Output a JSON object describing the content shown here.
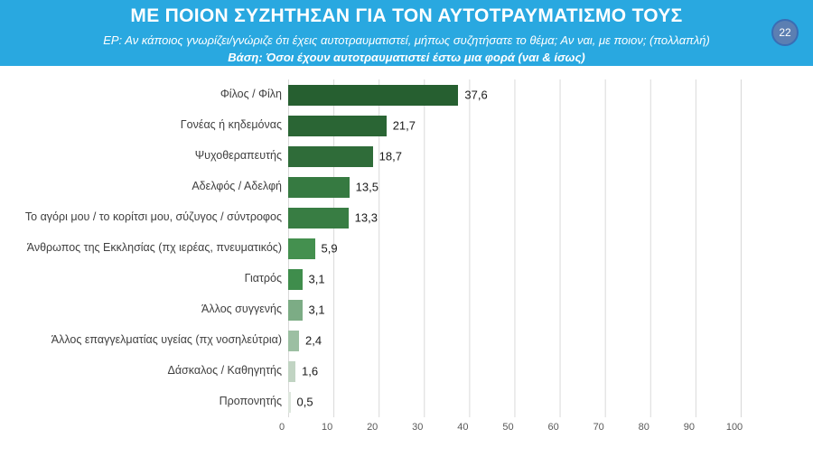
{
  "slide": {
    "page_number": "22",
    "header": {
      "title": "ΜΕ ΠΟΙΟΝ ΣΥΖΗΤΗΣΑΝ ΓΙΑ ΤΟΝ ΑΥΤΟΤΡΑΥΜΑΤΙΣΜΟ ΤΟΥΣ",
      "subtitle": "ΕΡ: Αν κάποιος γνωρίζει/γνώριζε ότι έχεις αυτοτραυματιστεί, μήπως συζητήσατε το θέμα;  Αν ναι, με ποιον; (πολλαπλή)",
      "base_note": "Βάση: Όσοι έχουν αυτοτραυματιστεί έστω μια φορά (ναι & ίσως)"
    },
    "colors": {
      "header_bg": "#29a8e0",
      "badge_fill": "#5c7fb2",
      "badge_border": "#3a6db4",
      "gridline": "#d9d9d9",
      "category_text": "#3f3f3f",
      "value_text": "#1a1a1a",
      "tick_text": "#595959"
    }
  },
  "chart_data": {
    "type": "bar",
    "orientation": "horizontal",
    "title": "",
    "xlabel": "",
    "ylabel": "",
    "categories": [
      "Φίλος / Φίλη",
      "Γονέας ή κηδεμόνας",
      "Ψυχοθεραπευτής",
      "Αδελφός / Αδελφή",
      "Το αγόρι μου / το κορίτσι μου, σύζυγος / σύντροφος",
      "Άνθρωπος της Εκκλησίας (πχ ιερέας, πνευματικός)",
      "Γιατρός",
      "Άλλος συγγενής",
      "Άλλος επαγγελματίας υγείας (πχ νοσηλεύτρια)",
      "Δάσκαλος / Καθηγητής",
      "Προπονητής"
    ],
    "values": [
      37.6,
      21.7,
      18.7,
      13.5,
      13.3,
      5.9,
      3.1,
      3.1,
      2.4,
      1.6,
      0.5
    ],
    "value_labels": [
      "37,6",
      "21,7",
      "18,7",
      "13,5",
      "13,3",
      "5,9",
      "3,1",
      "3,1",
      "2,4",
      "1,6",
      "0,5"
    ],
    "xlim": [
      0,
      100
    ],
    "xticks": [
      "0",
      "10",
      "20",
      "30",
      "40",
      "50",
      "60",
      "70",
      "80",
      "90",
      "100"
    ],
    "grid": "vertical",
    "legend": "none",
    "bar_colors": [
      "#265f30",
      "#2a6534",
      "#2f6c39",
      "#367a41",
      "#387d43",
      "#44904f",
      "#3f8d4c",
      "#7cac85",
      "#9cbfa2",
      "#c1d4c3",
      "#dee7de"
    ]
  }
}
